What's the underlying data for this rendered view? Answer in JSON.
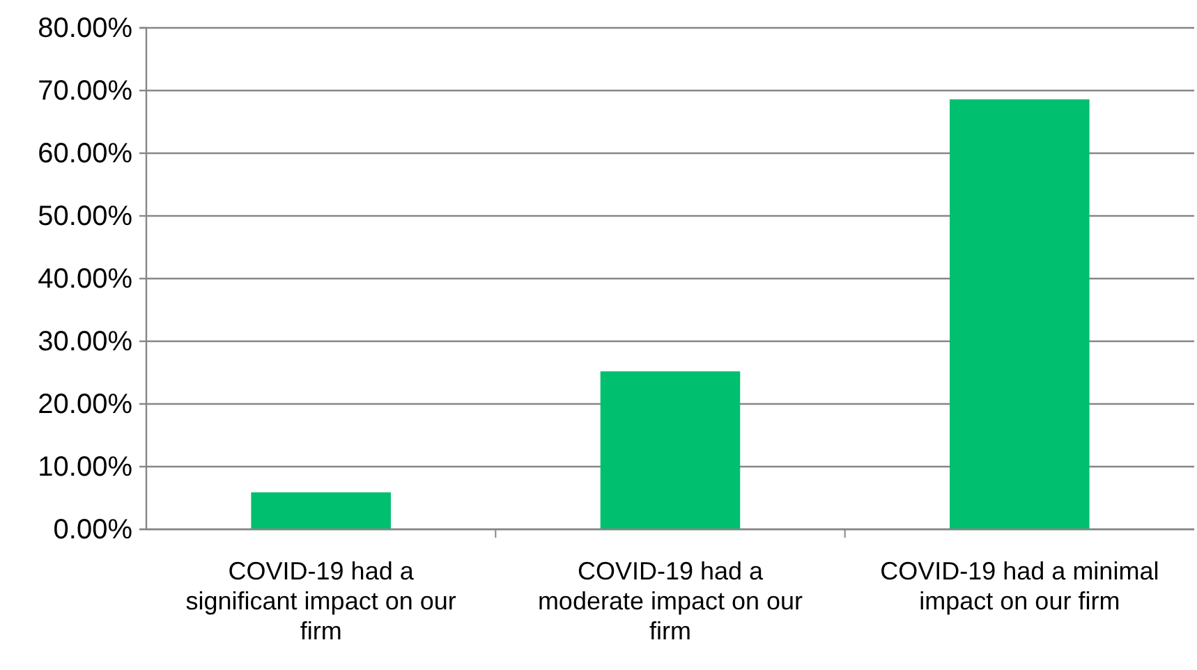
{
  "chart_data": {
    "type": "bar",
    "categories": [
      "COVID-19 had a significant impact on our firm",
      "COVID-19 had a moderate impact on our firm",
      "COVID-19 had a minimal impact on our firm"
    ],
    "values": [
      5.9,
      25.2,
      68.6
    ],
    "color": "#00bf6f",
    "ylim": [
      0,
      80
    ],
    "yticks": [
      {
        "value": 0,
        "label": "0.00%"
      },
      {
        "value": 10,
        "label": "10.00%"
      },
      {
        "value": 20,
        "label": "20.00%"
      },
      {
        "value": 30,
        "label": "30.00%"
      },
      {
        "value": 40,
        "label": "40.00%"
      },
      {
        "value": 50,
        "label": "50.00%"
      },
      {
        "value": 60,
        "label": "60.00%"
      },
      {
        "value": 70,
        "label": "70.00%"
      },
      {
        "value": 80,
        "label": "80.00%"
      }
    ],
    "grid": "y"
  }
}
